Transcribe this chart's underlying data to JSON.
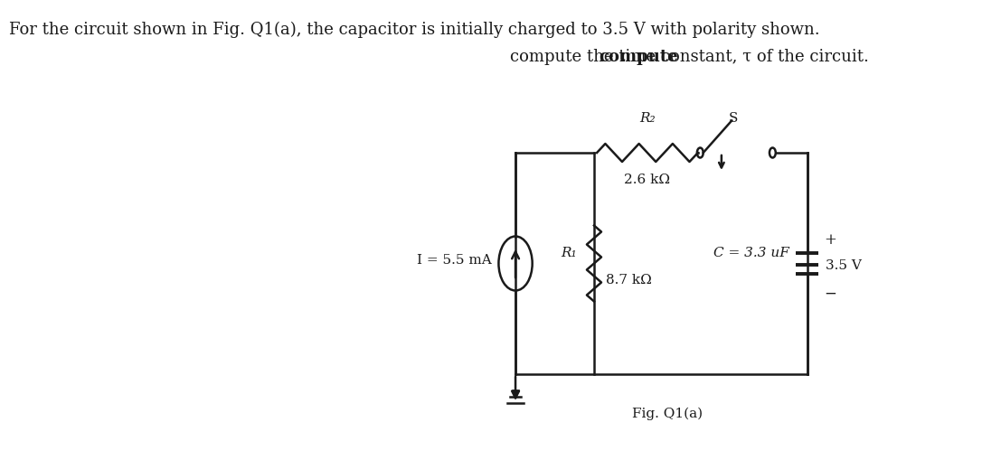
{
  "title_line1": "For the circuit shown in Fig. Q1(a), the capacitor is initially charged to 3.5 V with polarity shown.",
  "title_line2_bold": "compute",
  "title_line2_rest": " the time constant, τ of the circuit.",
  "current_label": "I = 5.5 mA",
  "R1_label": "R₁",
  "R1_value": "8.7 kΩ",
  "R2_label": "R₂",
  "R2_value": "2.6 kΩ",
  "S_label": "S",
  "C_label": "C = 3.3 uF",
  "V_label": "3.5 V",
  "fig_label": "Fig. Q1(a)",
  "bg_color": "#ffffff",
  "line_color": "#1a1a1a",
  "fontsize_title": 13,
  "fontsize_labels": 11,
  "lw": 1.8
}
